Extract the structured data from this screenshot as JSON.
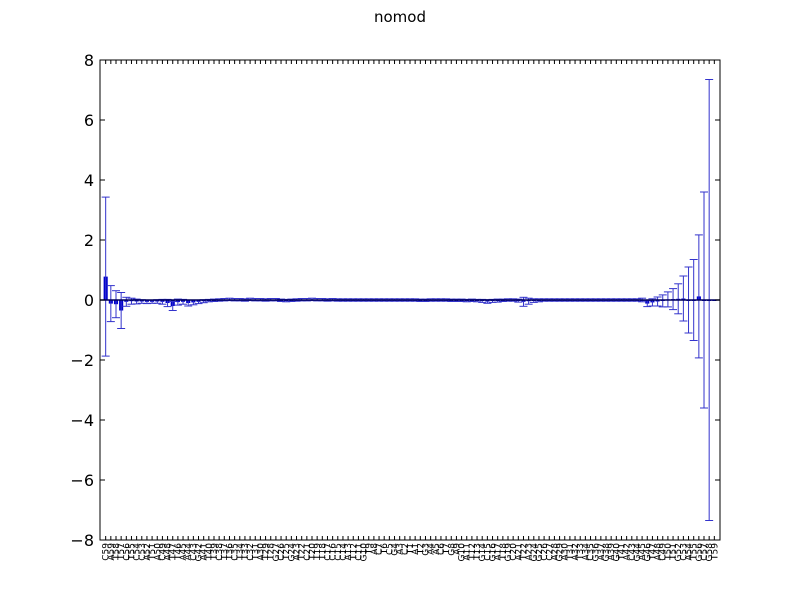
{
  "chart_data": {
    "type": "bar",
    "title": "nomod",
    "xlabel": "",
    "ylabel": "",
    "ylim": [
      -8,
      8
    ],
    "yticks": [
      -8,
      -6,
      -4,
      -2,
      0,
      2,
      4,
      6,
      8
    ],
    "grid": false,
    "legend": "none",
    "colors": {
      "bar": "#0000cc",
      "errorbar": "#3333cc",
      "axis": "#000000"
    },
    "categories": [
      "C59",
      "A59",
      "T58",
      "T57",
      "C56",
      "T55",
      "C54",
      "C53",
      "A52",
      "T51",
      "A50",
      "C49",
      "A48",
      "T47",
      "T46",
      "A45",
      "A44",
      "C43",
      "G42",
      "A41",
      "T40",
      "T39",
      "C38",
      "T37",
      "T36",
      "C35",
      "T34",
      "T33",
      "C32",
      "T31",
      "A30",
      "T29",
      "T28",
      "G27",
      "C26",
      "T25",
      "G24",
      "A23",
      "T22",
      "C21",
      "T20",
      "T19",
      "T18",
      "C17",
      "C16",
      "C15",
      "C14",
      "A13",
      "T12",
      "C11",
      "G10",
      "T9",
      "A8",
      "C7",
      "T6",
      "C5",
      "G4",
      "A3",
      "C2",
      "T1",
      "A1",
      "T2",
      "G3",
      "A4",
      "A5",
      "C6",
      "T7",
      "G8",
      "A9",
      "G10",
      "A11",
      "T12",
      "T13",
      "G14",
      "C15",
      "G16",
      "A17",
      "T18",
      "G19",
      "C20",
      "A21",
      "T22",
      "A23",
      "G24",
      "G25",
      "C26",
      "C27",
      "A28",
      "G29",
      "A30",
      "T31",
      "A32",
      "T33",
      "A34",
      "C35",
      "G36",
      "A37",
      "G38",
      "A39",
      "G40",
      "T41",
      "A42",
      "C43",
      "G44",
      "A45",
      "G46",
      "T47",
      "A48",
      "C49",
      "T50",
      "T51",
      "G52",
      "C53",
      "A54",
      "T55",
      "G56",
      "C57",
      "G58",
      "T59"
    ],
    "values": [
      0.78,
      -0.12,
      -0.14,
      -0.35,
      -0.06,
      -0.04,
      -0.05,
      -0.05,
      -0.06,
      -0.06,
      -0.05,
      -0.06,
      -0.1,
      -0.2,
      -0.07,
      -0.06,
      -0.1,
      -0.08,
      -0.06,
      -0.04,
      -0.02,
      -0.01,
      0.0,
      0.01,
      0.02,
      0.01,
      0.01,
      0.0,
      0.02,
      0.01,
      0.01,
      0.0,
      0.01,
      0.01,
      -0.01,
      -0.02,
      -0.01,
      0.0,
      0.01,
      0.01,
      0.02,
      0.01,
      0.01,
      0.0,
      0.01,
      0.0,
      0.0,
      0.0,
      0.0,
      0.0,
      0.0,
      0.0,
      0.0,
      0.0,
      0.0,
      0.0,
      0.0,
      0.0,
      0.0,
      0.0,
      0.0,
      -0.01,
      -0.01,
      0.0,
      0.0,
      0.0,
      0.0,
      -0.01,
      -0.01,
      -0.01,
      -0.02,
      -0.01,
      -0.02,
      -0.03,
      -0.05,
      -0.03,
      -0.02,
      -0.01,
      0.0,
      0.0,
      -0.02,
      -0.06,
      -0.04,
      -0.02,
      -0.01,
      0.0,
      0.0,
      0.0,
      0.0,
      0.0,
      0.0,
      0.0,
      0.0,
      0.0,
      0.0,
      0.0,
      0.0,
      0.0,
      0.0,
      0.0,
      0.0,
      0.0,
      -0.01,
      -0.01,
      0.0,
      0.0,
      0.0,
      0.0,
      0.0,
      0.0,
      0.0,
      0.0,
      0.0,
      0.0,
      0.0,
      0.0,
      0.0,
      0.0,
      0.0
    ],
    "errors": [
      2.65,
      0.6,
      0.45,
      0.6,
      0.15,
      0.1,
      0.08,
      0.06,
      0.06,
      0.05,
      0.06,
      0.08,
      0.12,
      0.15,
      0.1,
      0.08,
      0.1,
      0.08,
      0.06,
      0.05,
      0.04,
      0.04,
      0.04,
      0.04,
      0.04,
      0.04,
      0.04,
      0.04,
      0.04,
      0.04,
      0.04,
      0.04,
      0.04,
      0.04,
      0.04,
      0.04,
      0.04,
      0.04,
      0.04,
      0.04,
      0.04,
      0.04,
      0.04,
      0.04,
      0.04,
      0.04,
      0.04,
      0.04,
      0.04,
      0.04,
      0.04,
      0.04,
      0.04,
      0.04,
      0.04,
      0.04,
      0.04,
      0.04,
      0.04,
      0.04,
      0.04,
      0.04,
      0.04,
      0.04,
      0.04,
      0.04,
      0.04,
      0.04,
      0.04,
      0.04,
      0.04,
      0.04,
      0.04,
      0.05,
      0.06,
      0.05,
      0.05,
      0.04,
      0.04,
      0.04,
      0.05,
      0.15,
      0.1,
      0.06,
      0.05,
      0.04,
      0.04,
      0.04,
      0.04,
      0.04,
      0.04,
      0.04,
      0.04,
      0.04,
      0.04,
      0.04,
      0.04,
      0.04,
      0.04,
      0.04,
      0.04,
      0.04,
      0.04,
      0.04,
      0.04,
      0.04,
      0.04,
      0.04,
      0.04,
      0.04,
      0.04,
      0.04,
      0.04,
      0.04,
      0.04,
      0.04,
      0.04,
      0.04,
      0.04
    ],
    "tail_values": [
      0,
      0,
      0,
      0,
      0,
      0,
      0,
      0,
      0,
      0,
      0,
      0,
      0,
      0,
      -0.12,
      -0.08,
      -0.05,
      -0.03,
      0.02,
      0.03,
      0.04,
      0.05,
      0.0,
      0.0,
      0.12,
      0.0,
      0.0,
      0.0
    ],
    "tail_errors": [
      0.04,
      0.04,
      0.04,
      0.04,
      0.04,
      0.04,
      0.04,
      0.04,
      0.04,
      0.04,
      0.04,
      0.04,
      0.04,
      0.06,
      0.1,
      0.12,
      0.15,
      0.2,
      0.25,
      0.35,
      0.5,
      0.75,
      1.1,
      1.35,
      2.05,
      3.6,
      7.35,
      0.0
    ]
  }
}
